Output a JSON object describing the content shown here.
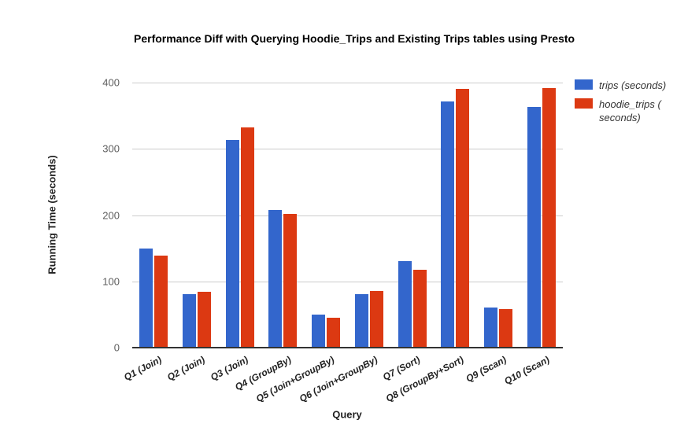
{
  "chart_data": {
    "type": "bar",
    "title": "Performance Diff with Querying Hoodie_Trips and Existing Trips tables using Presto",
    "xlabel": "Query",
    "ylabel": "Running Time (seconds)",
    "ylim": [
      0,
      400
    ],
    "yticks": [
      0,
      100,
      200,
      300,
      400
    ],
    "grid": true,
    "legend_position": "right",
    "categories": [
      "Q1 (Join)",
      "Q2 (Join)",
      "Q3 (Join)",
      "Q4 (GroupBy)",
      "Q5 (Join+GroupBy)",
      "Q6 (Join+GroupBy)",
      "Q7 (Sort)",
      "Q8 (GroupBy+Sort)",
      "Q9 (Scan)",
      "Q10 (Scan)"
    ],
    "series": [
      {
        "name": "trips (seconds)",
        "color": "#3366cc",
        "values": [
          150,
          81,
          313,
          208,
          50,
          81,
          131,
          371,
          60,
          363
        ]
      },
      {
        "name": "hoodie_trips ( seconds)",
        "color": "#dc3912",
        "values": [
          139,
          84,
          332,
          202,
          45,
          85,
          117,
          390,
          58,
          392
        ]
      }
    ]
  }
}
